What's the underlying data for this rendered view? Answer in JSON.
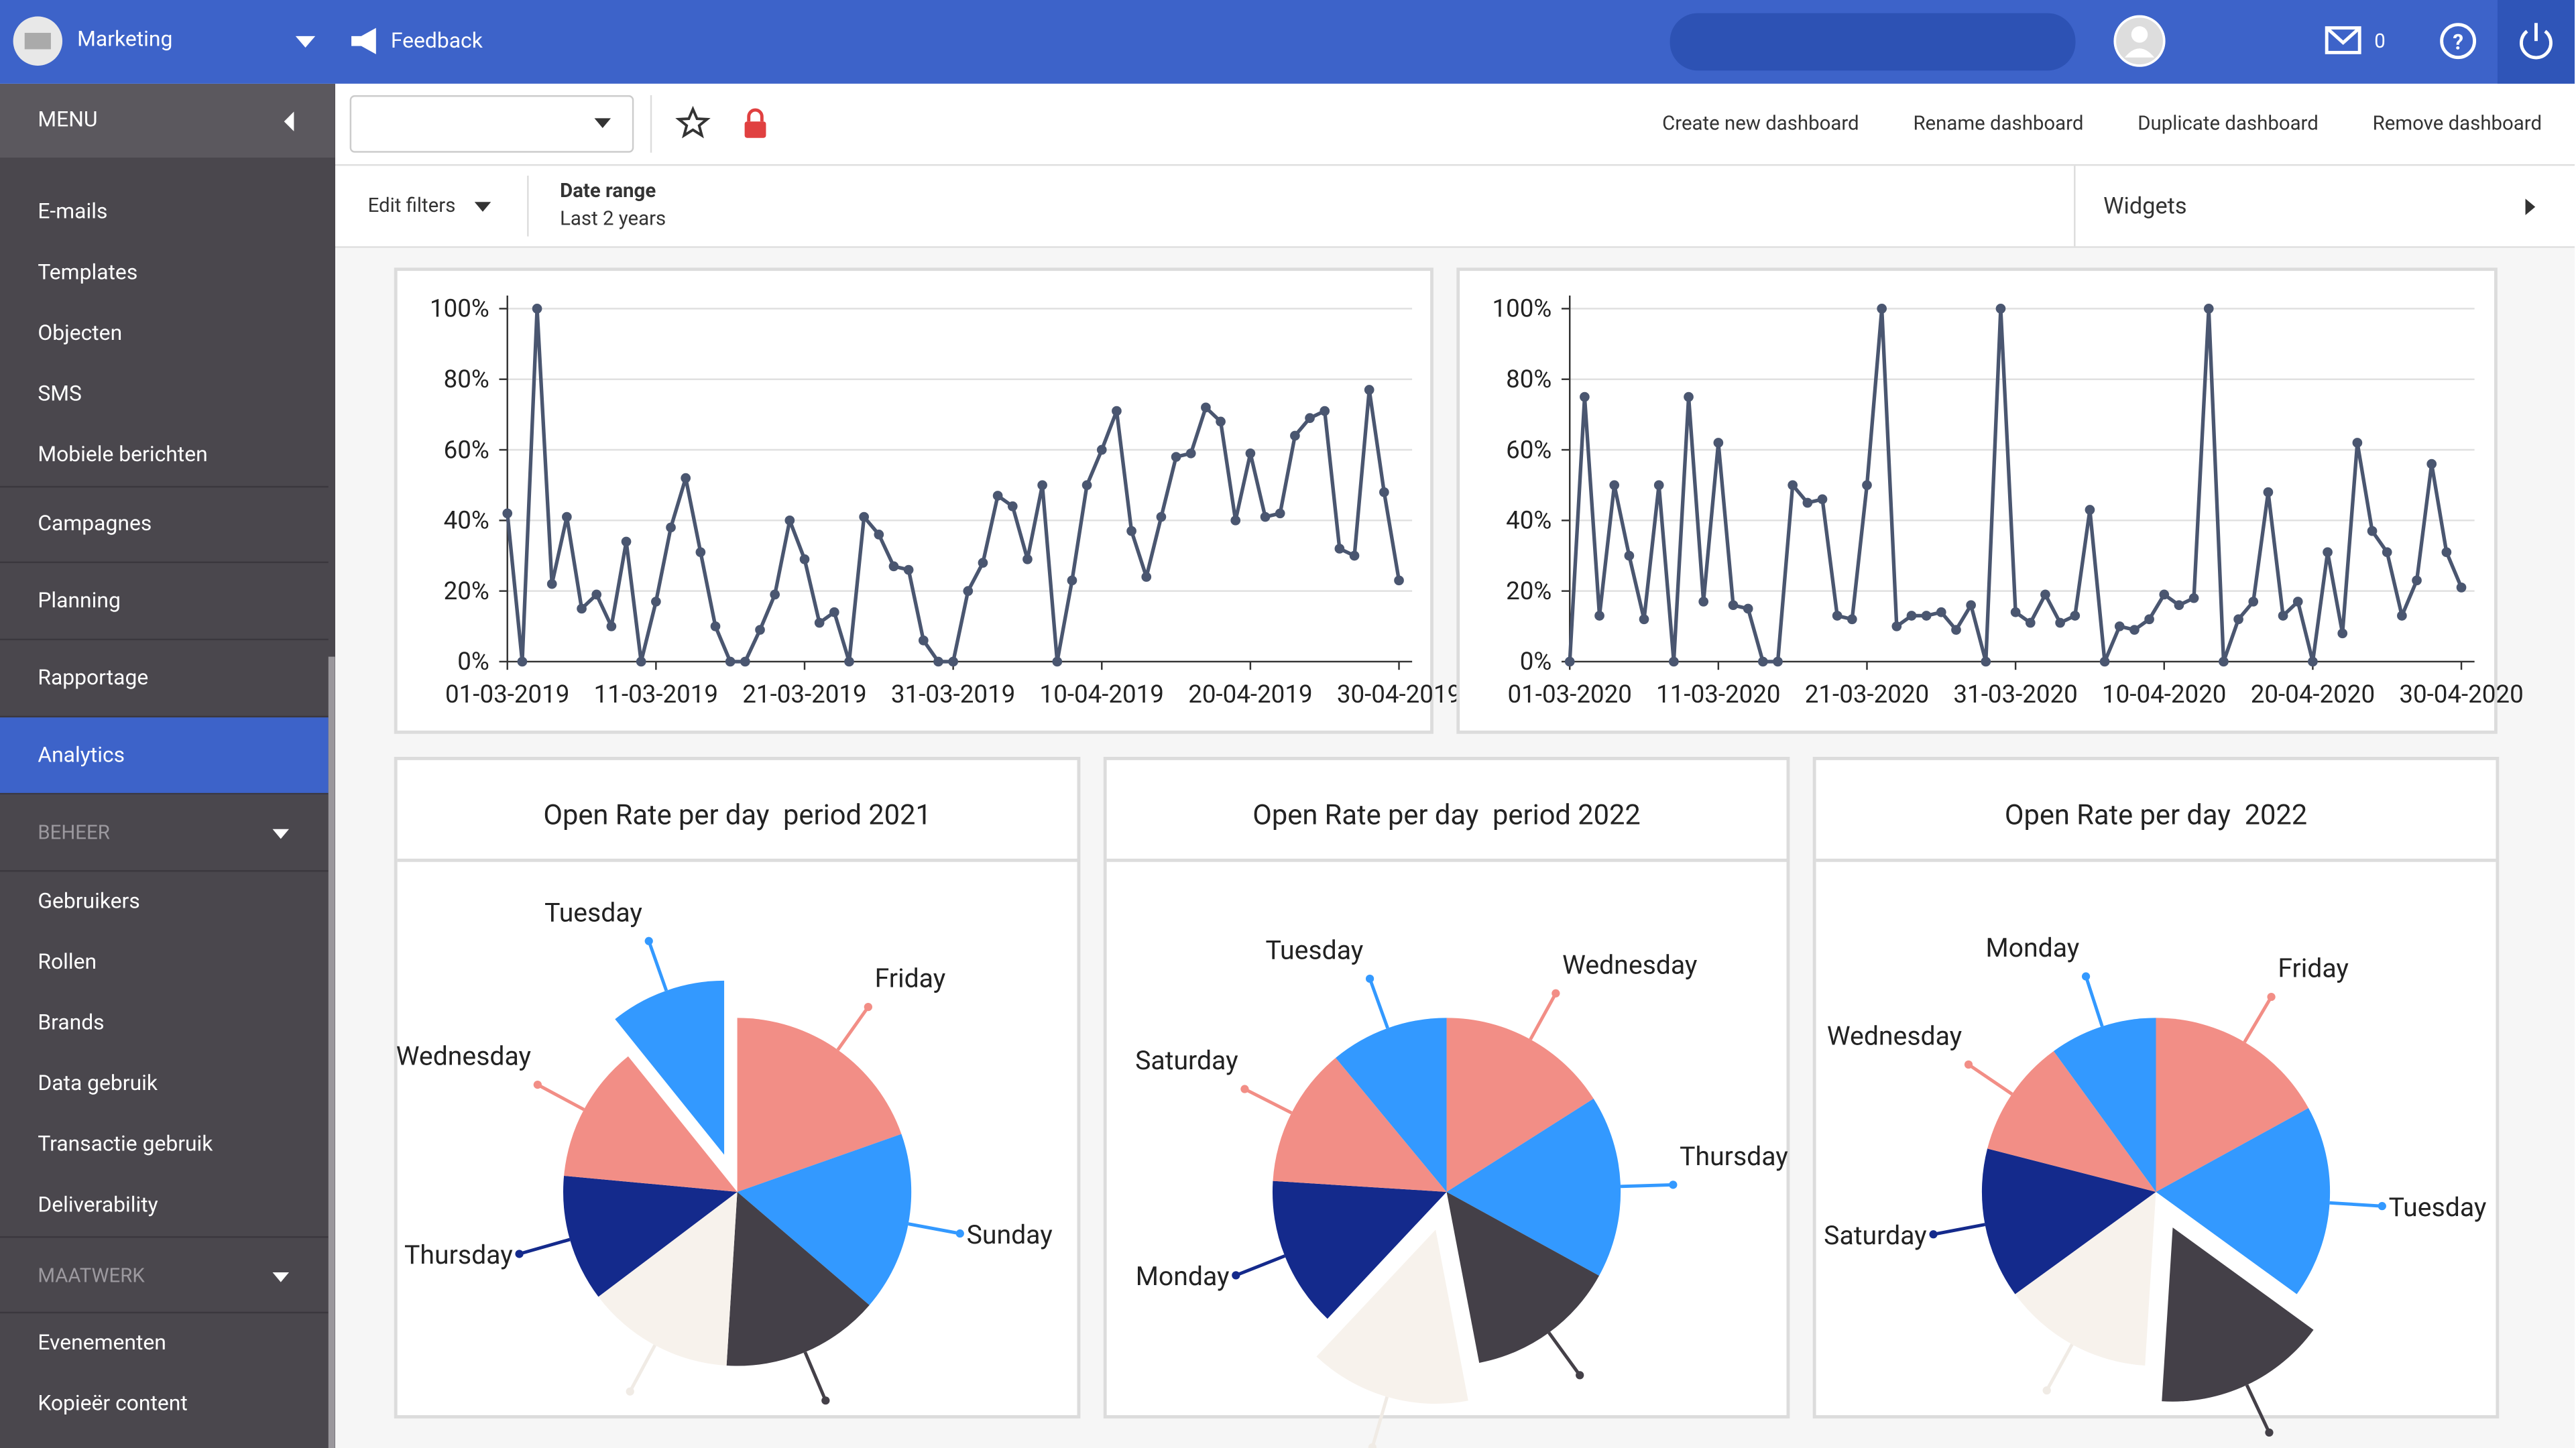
{
  "topbar": {
    "account": "Marketing",
    "feedback": "Feedback",
    "mail_count": 0
  },
  "sidebar": {
    "menu": "MENU",
    "items": [
      {
        "label": "E-mails",
        "kind": "item"
      },
      {
        "label": "Templates",
        "kind": "item"
      },
      {
        "label": "Objecten",
        "kind": "item"
      },
      {
        "label": "SMS",
        "kind": "item"
      },
      {
        "label": "Mobiele berichten",
        "kind": "item"
      },
      {
        "label": "Campagnes",
        "kind": "section"
      },
      {
        "label": "Planning",
        "kind": "section"
      },
      {
        "label": "Rapportage",
        "kind": "section"
      },
      {
        "label": "Analytics",
        "kind": "active"
      },
      {
        "label": "BEHEER",
        "kind": "group"
      },
      {
        "label": "Gebruikers",
        "kind": "item"
      },
      {
        "label": "Rollen",
        "kind": "item"
      },
      {
        "label": "Brands",
        "kind": "item"
      },
      {
        "label": "Data gebruik",
        "kind": "item"
      },
      {
        "label": "Transactie gebruik",
        "kind": "item"
      },
      {
        "label": "Deliverability",
        "kind": "item"
      },
      {
        "label": "MAATWERK",
        "kind": "group"
      },
      {
        "label": "Evenementen",
        "kind": "item"
      },
      {
        "label": "Kopieër content",
        "kind": "item"
      }
    ]
  },
  "toolbar": {
    "actions": [
      "Create new dashboard",
      "Rename dashboard",
      "Duplicate dashboard",
      "Remove dashboard"
    ]
  },
  "filters": {
    "edit": "Edit filters",
    "date_label": "Date range",
    "date_value": "Last 2 years",
    "widgets": "Widgets"
  },
  "chart_data": [
    {
      "type": "line",
      "color": "#4a5670",
      "grid": true,
      "ylim": [
        0,
        100
      ],
      "yticks": [
        {
          "value": 0,
          "label": "0%"
        },
        {
          "value": 20,
          "label": "20%"
        },
        {
          "value": 40,
          "label": "40%"
        },
        {
          "value": 60,
          "label": "60%"
        },
        {
          "value": 80,
          "label": "80%"
        },
        {
          "value": 100,
          "label": "100%"
        }
      ],
      "x": [
        "01-03-2019",
        "02-03-2019",
        "03-03-2019",
        "04-03-2019",
        "05-03-2019",
        "06-03-2019",
        "07-03-2019",
        "08-03-2019",
        "09-03-2019",
        "10-03-2019",
        "11-03-2019",
        "12-03-2019",
        "13-03-2019",
        "14-03-2019",
        "15-03-2019",
        "16-03-2019",
        "17-03-2019",
        "18-03-2019",
        "19-03-2019",
        "20-03-2019",
        "21-03-2019",
        "22-03-2019",
        "23-03-2019",
        "24-03-2019",
        "25-03-2019",
        "26-03-2019",
        "27-03-2019",
        "28-03-2019",
        "29-03-2019",
        "30-03-2019",
        "31-03-2019",
        "01-04-2019",
        "02-04-2019",
        "03-04-2019",
        "04-04-2019",
        "05-04-2019",
        "06-04-2019",
        "07-04-2019",
        "08-04-2019",
        "09-04-2019",
        "10-04-2019",
        "11-04-2019",
        "12-04-2019",
        "13-04-2019",
        "14-04-2019",
        "15-04-2019",
        "16-04-2019",
        "17-04-2019",
        "18-04-2019",
        "19-04-2019",
        "20-04-2019",
        "21-04-2019",
        "22-04-2019",
        "23-04-2019",
        "24-04-2019",
        "25-04-2019",
        "26-04-2019",
        "27-04-2019",
        "28-04-2019",
        "29-04-2019",
        "30-04-2019"
      ],
      "xtick_every": 10,
      "values": [
        42,
        0,
        100,
        22,
        41,
        15,
        19,
        10,
        34,
        0,
        17,
        38,
        52,
        31,
        10,
        0,
        0,
        9,
        19,
        40,
        29,
        11,
        14,
        0,
        41,
        36,
        27,
        26,
        6,
        0,
        0,
        20,
        28,
        47,
        44,
        29,
        50,
        0,
        23,
        50,
        60,
        71,
        37,
        24,
        41,
        58,
        59,
        72,
        68,
        40,
        59,
        41,
        42,
        64,
        69,
        71,
        32,
        30,
        77,
        48,
        23
      ]
    },
    {
      "type": "line",
      "color": "#4a5670",
      "grid": true,
      "ylim": [
        0,
        100
      ],
      "yticks": [
        {
          "value": 0,
          "label": "0%"
        },
        {
          "value": 20,
          "label": "20%"
        },
        {
          "value": 40,
          "label": "40%"
        },
        {
          "value": 60,
          "label": "60%"
        },
        {
          "value": 80,
          "label": "80%"
        },
        {
          "value": 100,
          "label": "100%"
        }
      ],
      "x": [
        "01-03-2020",
        "02-03-2020",
        "03-03-2020",
        "04-03-2020",
        "05-03-2020",
        "06-03-2020",
        "07-03-2020",
        "08-03-2020",
        "09-03-2020",
        "10-03-2020",
        "11-03-2020",
        "12-03-2020",
        "13-03-2020",
        "14-03-2020",
        "15-03-2020",
        "16-03-2020",
        "17-03-2020",
        "18-03-2020",
        "19-03-2020",
        "20-03-2020",
        "21-03-2020",
        "22-03-2020",
        "23-03-2020",
        "24-03-2020",
        "25-03-2020",
        "26-03-2020",
        "27-03-2020",
        "28-03-2020",
        "29-03-2020",
        "30-03-2020",
        "31-03-2020",
        "01-04-2020",
        "02-04-2020",
        "03-04-2020",
        "04-04-2020",
        "05-04-2020",
        "06-04-2020",
        "07-04-2020",
        "08-04-2020",
        "09-04-2020",
        "10-04-2020",
        "11-04-2020",
        "12-04-2020",
        "13-04-2020",
        "14-04-2020",
        "15-04-2020",
        "16-04-2020",
        "17-04-2020",
        "18-04-2020",
        "19-04-2020",
        "20-04-2020",
        "21-04-2020",
        "22-04-2020",
        "23-04-2020",
        "24-04-2020",
        "25-04-2020",
        "26-04-2020",
        "27-04-2020",
        "28-04-2020",
        "29-04-2020",
        "30-04-2020"
      ],
      "xtick_every": 10,
      "values": [
        0,
        75,
        13,
        50,
        30,
        12,
        50,
        0,
        75,
        17,
        62,
        16,
        15,
        0,
        0,
        50,
        45,
        46,
        13,
        12,
        50,
        100,
        10,
        13,
        13,
        14,
        9,
        16,
        0,
        100,
        14,
        11,
        19,
        11,
        13,
        43,
        0,
        10,
        9,
        12,
        19,
        16,
        18,
        100,
        0,
        12,
        17,
        48,
        13,
        17,
        0,
        31,
        8,
        62,
        37,
        31,
        13,
        23,
        56,
        31,
        21
      ]
    },
    {
      "type": "pie",
      "title": "Open Rate per day  period 2021",
      "categories": [
        "Friday",
        "Sunday",
        null,
        null,
        "Thursday",
        "Wednesday",
        "Tuesday"
      ],
      "values": [
        20,
        17,
        15,
        14,
        12,
        13,
        11
      ],
      "colors": [
        "#f28e86",
        "#3399ff",
        "#444048",
        "#f7f2ec",
        "#142a8c",
        "#f28e86",
        "#3399ff"
      ],
      "exploded": 6
    },
    {
      "type": "pie",
      "title": "Open Rate per day  period 2022",
      "categories": [
        "Wednesday",
        "Thursday",
        null,
        null,
        "Monday",
        "Saturday",
        "Tuesday"
      ],
      "values": [
        16,
        17,
        14,
        15,
        14,
        13,
        11
      ],
      "colors": [
        "#f28e86",
        "#3399ff",
        "#444048",
        "#f7f2ec",
        "#142a8c",
        "#f28e86",
        "#3399ff"
      ],
      "exploded": 3
    },
    {
      "type": "pie",
      "title": "Open Rate per day  2022",
      "categories": [
        "Friday",
        "Tuesday",
        null,
        null,
        "Saturday",
        "Wednesday",
        "Monday"
      ],
      "values": [
        17,
        18,
        16,
        14,
        14,
        11,
        10
      ],
      "colors": [
        "#f28e86",
        "#3399ff",
        "#444048",
        "#f7f2ec",
        "#142a8c",
        "#f28e86",
        "#3399ff"
      ],
      "exploded": 2
    }
  ]
}
